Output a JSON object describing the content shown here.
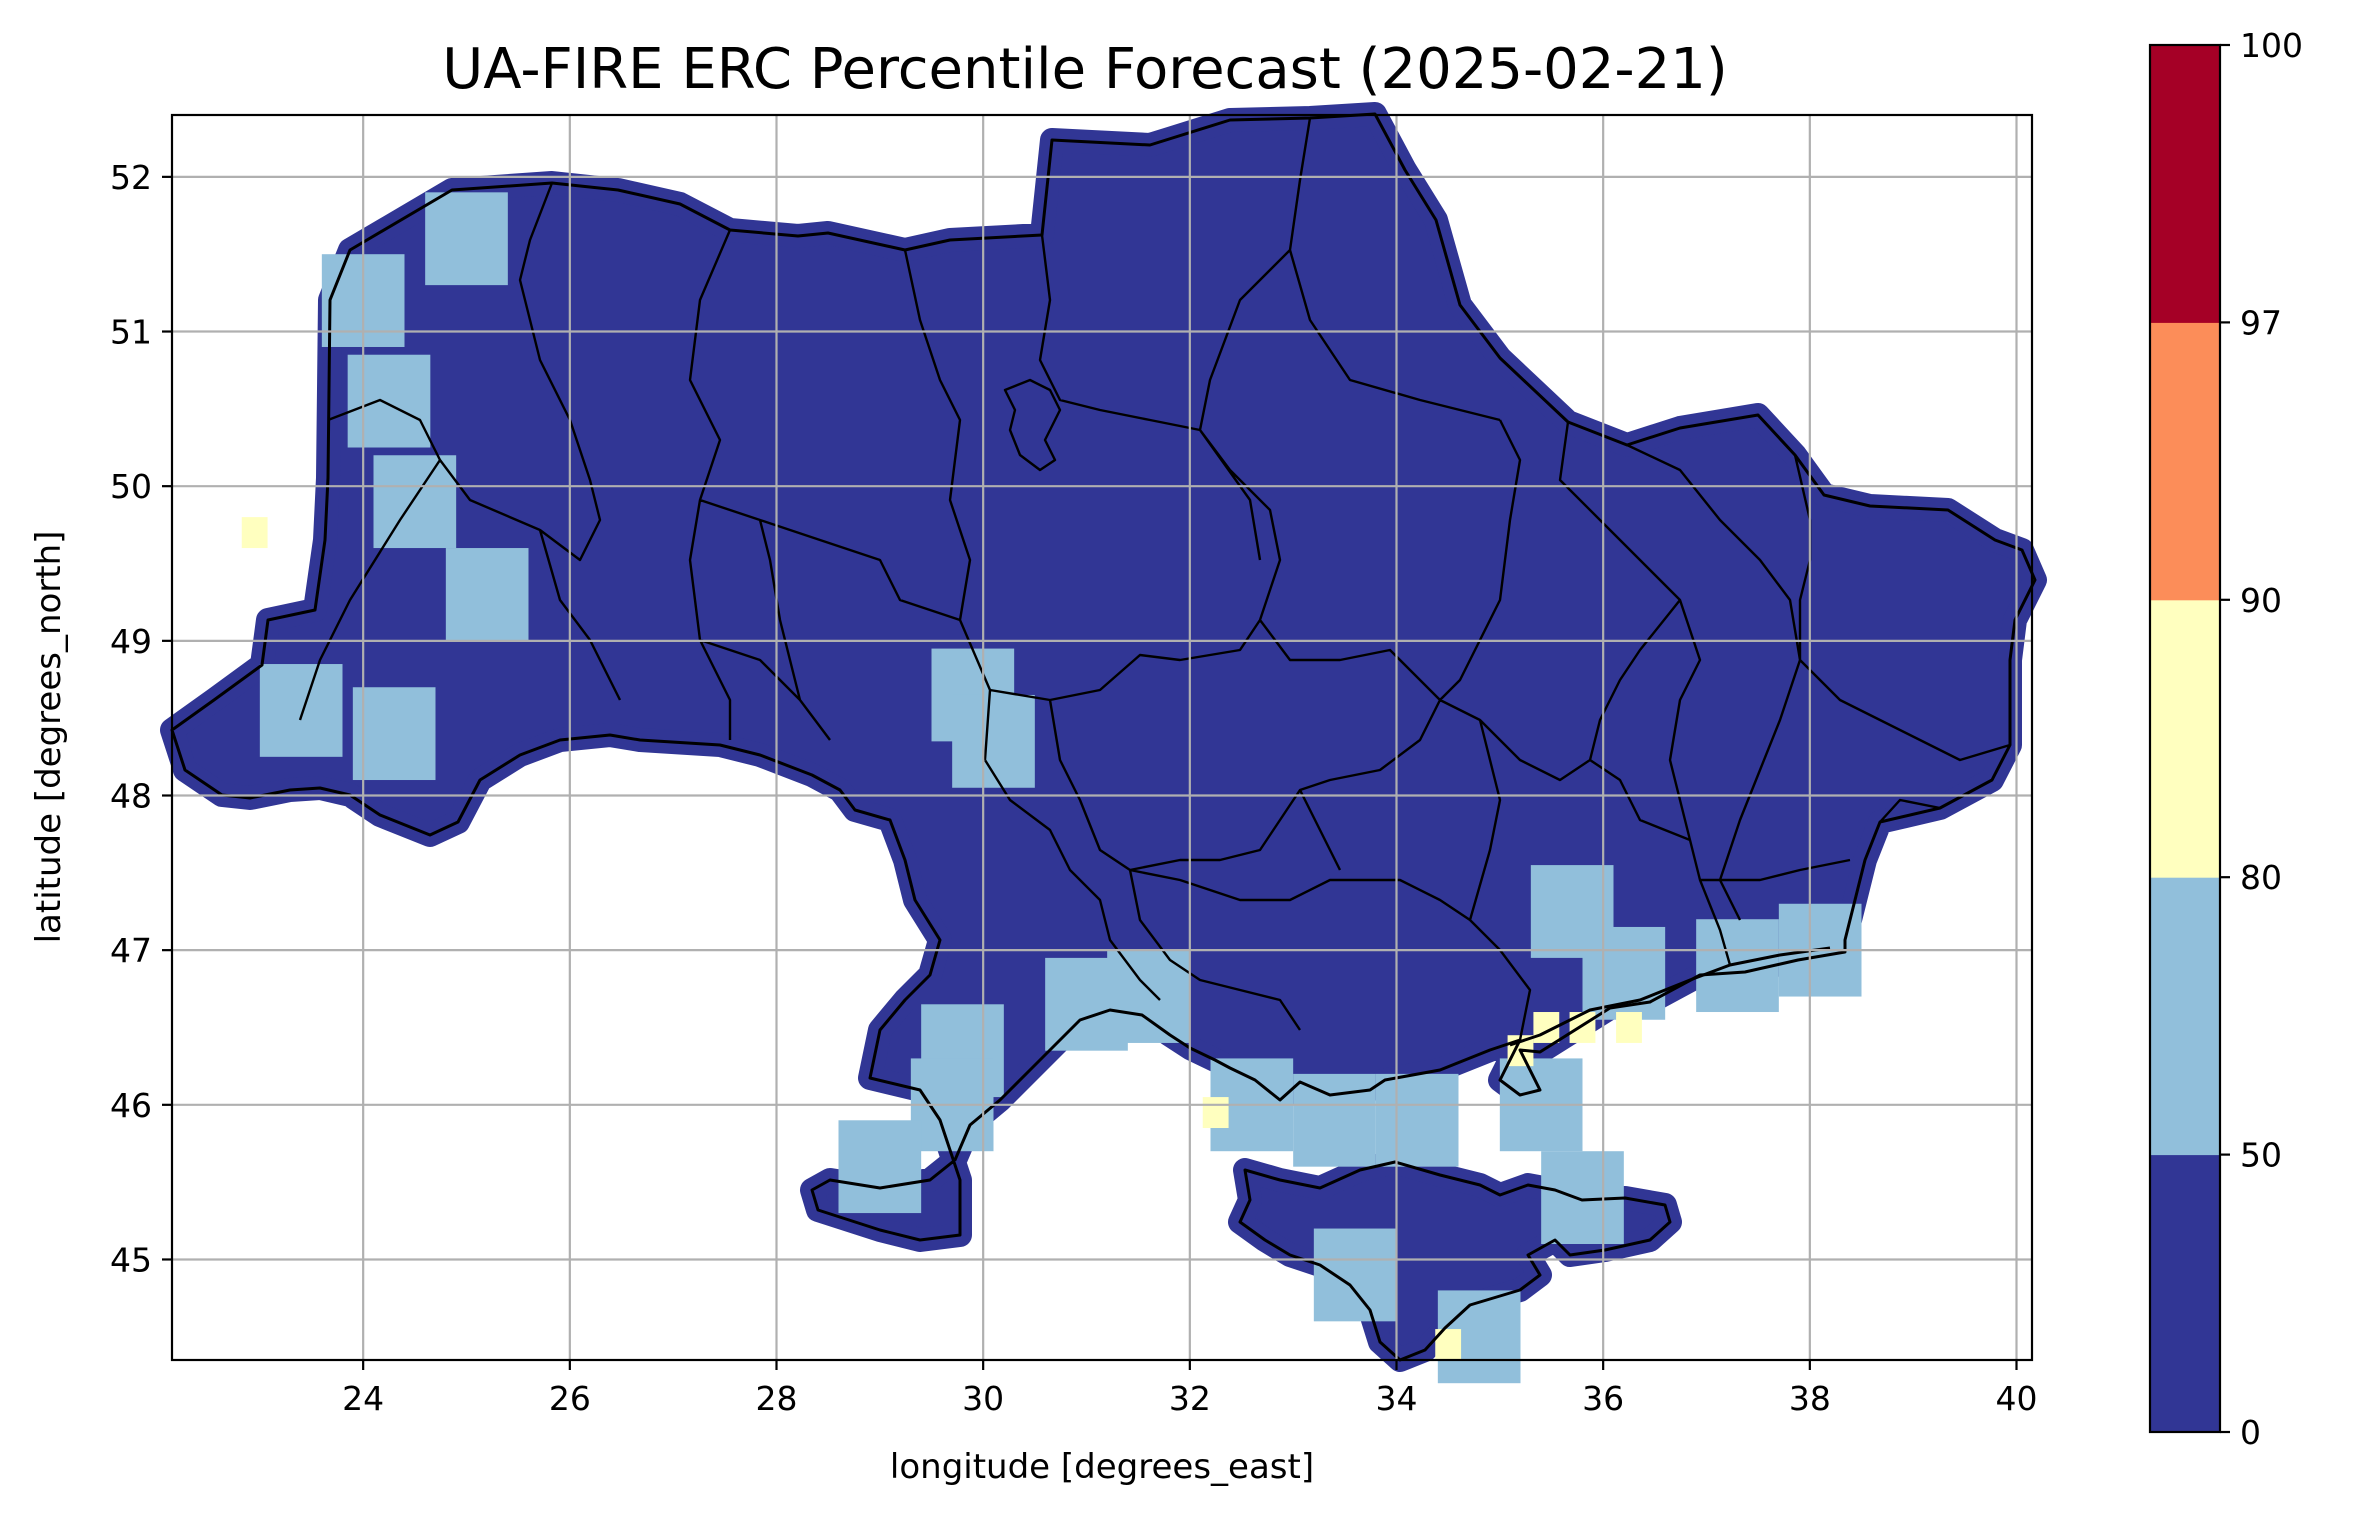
{
  "chart_data": {
    "type": "heatmap",
    "title": "UA-FIRE ERC Percentile Forecast (2025-02-21)",
    "xlabel": "longitude [degrees_east]",
    "ylabel": "latitude [degrees_north]",
    "xlim": [
      22.15,
      40.15
    ],
    "ylim": [
      44.35,
      52.4
    ],
    "x_ticks": [
      24,
      26,
      28,
      30,
      32,
      34,
      36,
      38,
      40
    ],
    "y_ticks": [
      45,
      46,
      47,
      48,
      49,
      50,
      51,
      52
    ],
    "x_tick_labels": [
      "24",
      "26",
      "28",
      "30",
      "32",
      "34",
      "36",
      "38",
      "40"
    ],
    "y_tick_labels": [
      "45",
      "46",
      "47",
      "48",
      "49",
      "50",
      "51",
      "52"
    ],
    "grid": true,
    "colorbar": {
      "bounds": [
        0,
        50,
        80,
        90,
        97,
        100
      ],
      "tick_labels": [
        "0",
        "50",
        "80",
        "90",
        "97",
        "100"
      ],
      "colors": [
        "#313695",
        "#91bfdb",
        "#ffffbf",
        "#fc8d59",
        "#a50026"
      ]
    },
    "regions": [
      {
        "class": 1,
        "cells": [
          [
            24.25,
            50.55
          ],
          [
            24.5,
            49.9
          ],
          [
            25.2,
            49.3
          ],
          [
            23.4,
            48.55
          ],
          [
            24.3,
            48.4
          ],
          [
            29.9,
            48.65
          ],
          [
            30.1,
            48.35
          ],
          [
            31.0,
            46.65
          ],
          [
            31.6,
            46.7
          ],
          [
            29.8,
            46.35
          ],
          [
            29.7,
            46.0
          ],
          [
            29.0,
            45.6
          ],
          [
            32.6,
            46.0
          ],
          [
            33.4,
            45.9
          ],
          [
            34.2,
            45.9
          ],
          [
            35.4,
            46.0
          ],
          [
            36.2,
            46.85
          ],
          [
            37.3,
            46.9
          ],
          [
            38.1,
            47.0
          ],
          [
            35.7,
            47.25
          ],
          [
            33.6,
            44.9
          ],
          [
            34.8,
            44.5
          ],
          [
            35.8,
            45.4
          ],
          [
            25.0,
            51.6
          ],
          [
            24.0,
            51.2
          ]
        ]
      },
      {
        "class": 2,
        "cells": [
          [
            22.95,
            49.7
          ],
          [
            35.2,
            46.35
          ],
          [
            35.45,
            46.5
          ],
          [
            35.8,
            46.5
          ],
          [
            36.25,
            46.5
          ],
          [
            32.25,
            45.95
          ],
          [
            34.5,
            44.45
          ]
        ]
      }
    ]
  }
}
